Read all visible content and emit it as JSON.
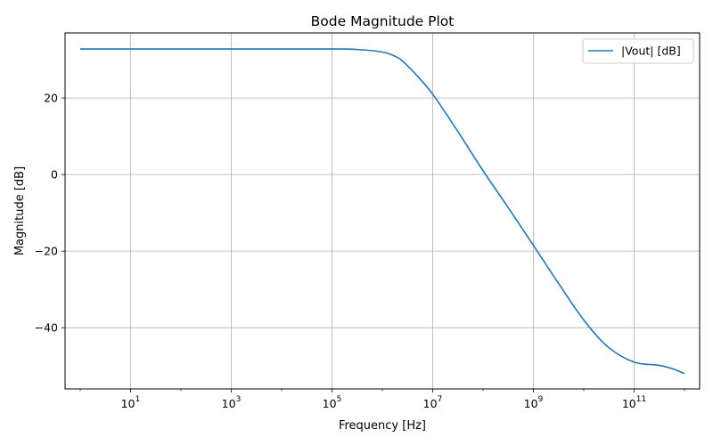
{
  "chart_data": {
    "type": "line",
    "title": "Bode Magnitude Plot",
    "xlabel": "Frequency [Hz]",
    "ylabel": "Magnitude [dB]",
    "x_scale": "log",
    "xlim": [
      0.5,
      2000000000000
    ],
    "ylim": [
      -56,
      37
    ],
    "grid": true,
    "legend_position": "top-right",
    "x_ticks": [
      {
        "value": 10,
        "base": "10",
        "exp": "1"
      },
      {
        "value": 1000,
        "base": "10",
        "exp": "3"
      },
      {
        "value": 100000,
        "base": "10",
        "exp": "5"
      },
      {
        "value": 10000000,
        "base": "10",
        "exp": "7"
      },
      {
        "value": 1000000000,
        "base": "10",
        "exp": "9"
      },
      {
        "value": 100000000000,
        "base": "10",
        "exp": "11"
      }
    ],
    "y_ticks": [
      {
        "value": 20,
        "label": "20"
      },
      {
        "value": 0,
        "label": "0"
      },
      {
        "value": -20,
        "label": "−20"
      },
      {
        "value": -40,
        "label": "−40"
      }
    ],
    "series": [
      {
        "name": "|Vout| [dB]",
        "color": "#1f77b4",
        "x": [
          1,
          10,
          100,
          1000,
          10000,
          100000,
          300000,
          1000000,
          2000000,
          3000000,
          5000000,
          10000000,
          30000000,
          100000000,
          300000000,
          1000000000,
          3000000000,
          10000000000,
          30000000000,
          100000000000,
          300000000000,
          600000000000,
          1000000000000
        ],
        "y": [
          32.8,
          32.8,
          32.8,
          32.8,
          32.8,
          32.8,
          32.7,
          32.0,
          30.6,
          28.7,
          25.7,
          21.0,
          11.7,
          1.0,
          -8.2,
          -18.5,
          -28.0,
          -38.0,
          -45.0,
          -49.0,
          -49.8,
          -50.8,
          -52.0
        ]
      }
    ]
  }
}
